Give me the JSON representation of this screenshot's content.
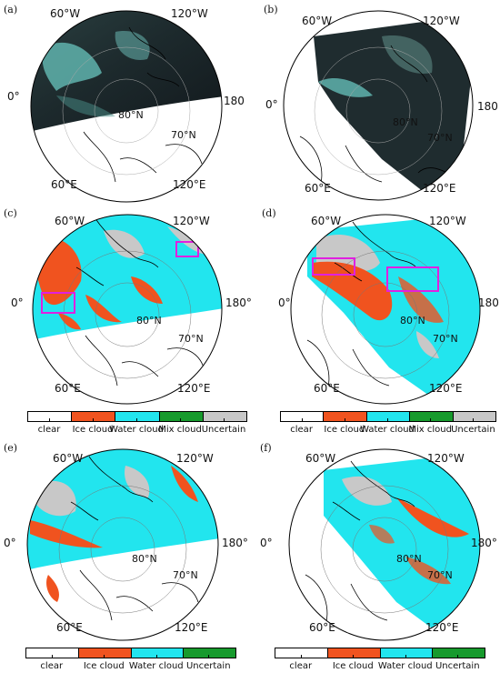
{
  "panels": [
    {
      "id": "a",
      "letter": "(a)",
      "labels": {
        "top_left": "60°W",
        "top_right": "120°W",
        "left": "0°",
        "right": "180",
        "lat": "80°N",
        "lat2": "70°N",
        "bottom_left": "60°E",
        "bottom_right": "120°E"
      }
    },
    {
      "id": "b",
      "letter": "(b)",
      "labels": {
        "top_left": "60°W",
        "top_right": "120°W",
        "left": "0°",
        "right": "180",
        "lat": "80°N",
        "lat2": "70°N",
        "bottom_left": "60°E",
        "bottom_right": "120°E"
      }
    },
    {
      "id": "c",
      "letter": "(c)",
      "labels": {
        "top_left": "60°W",
        "top_right": "120°W",
        "left": "0°",
        "right": "180°",
        "lat": "80°N",
        "lat2": "70°N",
        "bottom_left": "60°E",
        "bottom_right": "120°E"
      }
    },
    {
      "id": "d",
      "letter": "(d)",
      "labels": {
        "top_left": "60°W",
        "top_right": "120°W",
        "left": "0°",
        "right": "180°",
        "lat": "80°N",
        "lat2": "70°N",
        "bottom_left": "60°E",
        "bottom_right": "120°E"
      }
    },
    {
      "id": "e",
      "letter": "(e)",
      "labels": {
        "top_left": "60°W",
        "top_right": "120°W",
        "left": "0°",
        "right": "180°",
        "lat": "80°N",
        "lat2": "70°N",
        "bottom_left": "60°E",
        "bottom_right": "120°E"
      }
    },
    {
      "id": "f",
      "letter": "(f)",
      "labels": {
        "top_left": "60°W",
        "top_right": "120°W",
        "left": "0°",
        "right": "180°",
        "lat": "80°N",
        "lat2": "70°N",
        "bottom_left": "60°E",
        "bottom_right": "120°E"
      }
    }
  ],
  "legend_five": {
    "labels": [
      "clear",
      "Ice cloud",
      "Water cloud",
      "Mix cloud",
      "Uncertain"
    ],
    "colors": [
      "#ffffff",
      "#f0531f",
      "#22e5ee",
      "#179a2d",
      "#c8c8c8"
    ]
  },
  "legend_four": {
    "labels": [
      "clear",
      "Ice cloud",
      "Water cloud",
      "Uncertain"
    ],
    "colors": [
      "#ffffff",
      "#f0531f",
      "#22e5ee",
      "#179a2d"
    ]
  },
  "colors": {
    "ice": "#f0531f",
    "water": "#22e5ee",
    "uncertain": "#c8c8c8",
    "mix": "#179a2d",
    "satellite_dark": "#1b2a2c",
    "satellite_teal": "#5fb3ad",
    "box": "#e020e0"
  }
}
